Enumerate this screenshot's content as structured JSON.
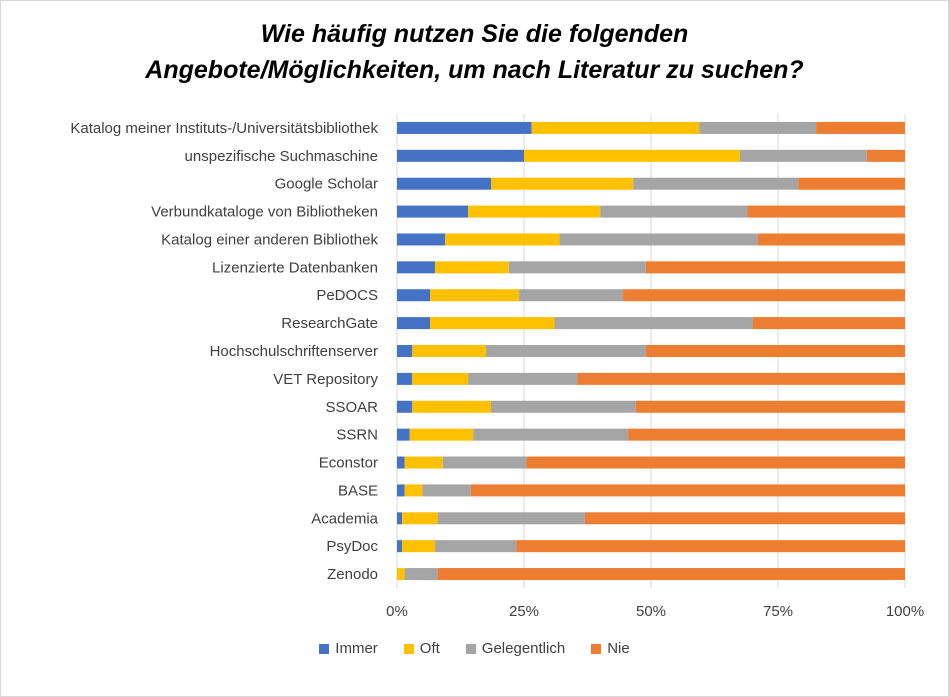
{
  "chart_data": {
    "type": "bar",
    "orientation": "horizontal",
    "stacked": "percent",
    "title": "Wie häufig nutzen Sie die folgenden Angebote/Möglichkeiten,  um nach Literatur zu suchen?",
    "title_lines": [
      "Wie häufig nutzen Sie die folgenden",
      "Angebote/Möglichkeiten,  um nach Literatur zu suchen?"
    ],
    "categories": [
      "Katalog meiner Instituts-/Universitätsbibliothek",
      "unspezifische Suchmaschine",
      "Google Scholar",
      "Verbundkataloge von Bibliotheken",
      "Katalog einer anderen Bibliothek",
      "Lizenzierte Datenbanken",
      "PeDOCS",
      "ResearchGate",
      "Hochschulschriftenserver",
      "VET Repository",
      "SSOAR",
      "SSRN",
      "Econstor",
      "BASE",
      "Academia",
      "PsyDoc",
      "Zenodo"
    ],
    "series": [
      {
        "name": "Immer",
        "color": "#4472c4",
        "values": [
          26.5,
          25,
          18.5,
          14,
          9.5,
          7.5,
          6.5,
          6.5,
          3,
          3,
          3,
          2.5,
          1.5,
          1.5,
          1,
          1,
          0
        ]
      },
      {
        "name": "Oft",
        "color": "#ffc000",
        "values": [
          33,
          42.5,
          28,
          26,
          22.5,
          14.5,
          17.5,
          24.5,
          14.5,
          11,
          15.5,
          12.5,
          7.5,
          3.5,
          7,
          6.5,
          1.5
        ]
      },
      {
        "name": "Gelegentlich",
        "color": "#a5a5a5",
        "values": [
          23,
          25,
          32.5,
          29,
          39,
          27,
          20.5,
          39,
          31.5,
          21.5,
          28.5,
          30.5,
          16.5,
          9.5,
          29,
          16,
          6.5
        ]
      },
      {
        "name": "Nie",
        "color": "#ed7d31",
        "values": [
          17.5,
          7.5,
          21,
          31,
          29,
          51,
          55.5,
          30,
          51,
          64.5,
          53,
          54.5,
          74.5,
          85.5,
          63,
          76.5,
          92
        ]
      }
    ],
    "xlim": [
      0,
      100
    ],
    "ticks": [
      "0%",
      "25%",
      "50%",
      "75%",
      "100%"
    ],
    "grid": true,
    "legend_position": "bottom"
  }
}
